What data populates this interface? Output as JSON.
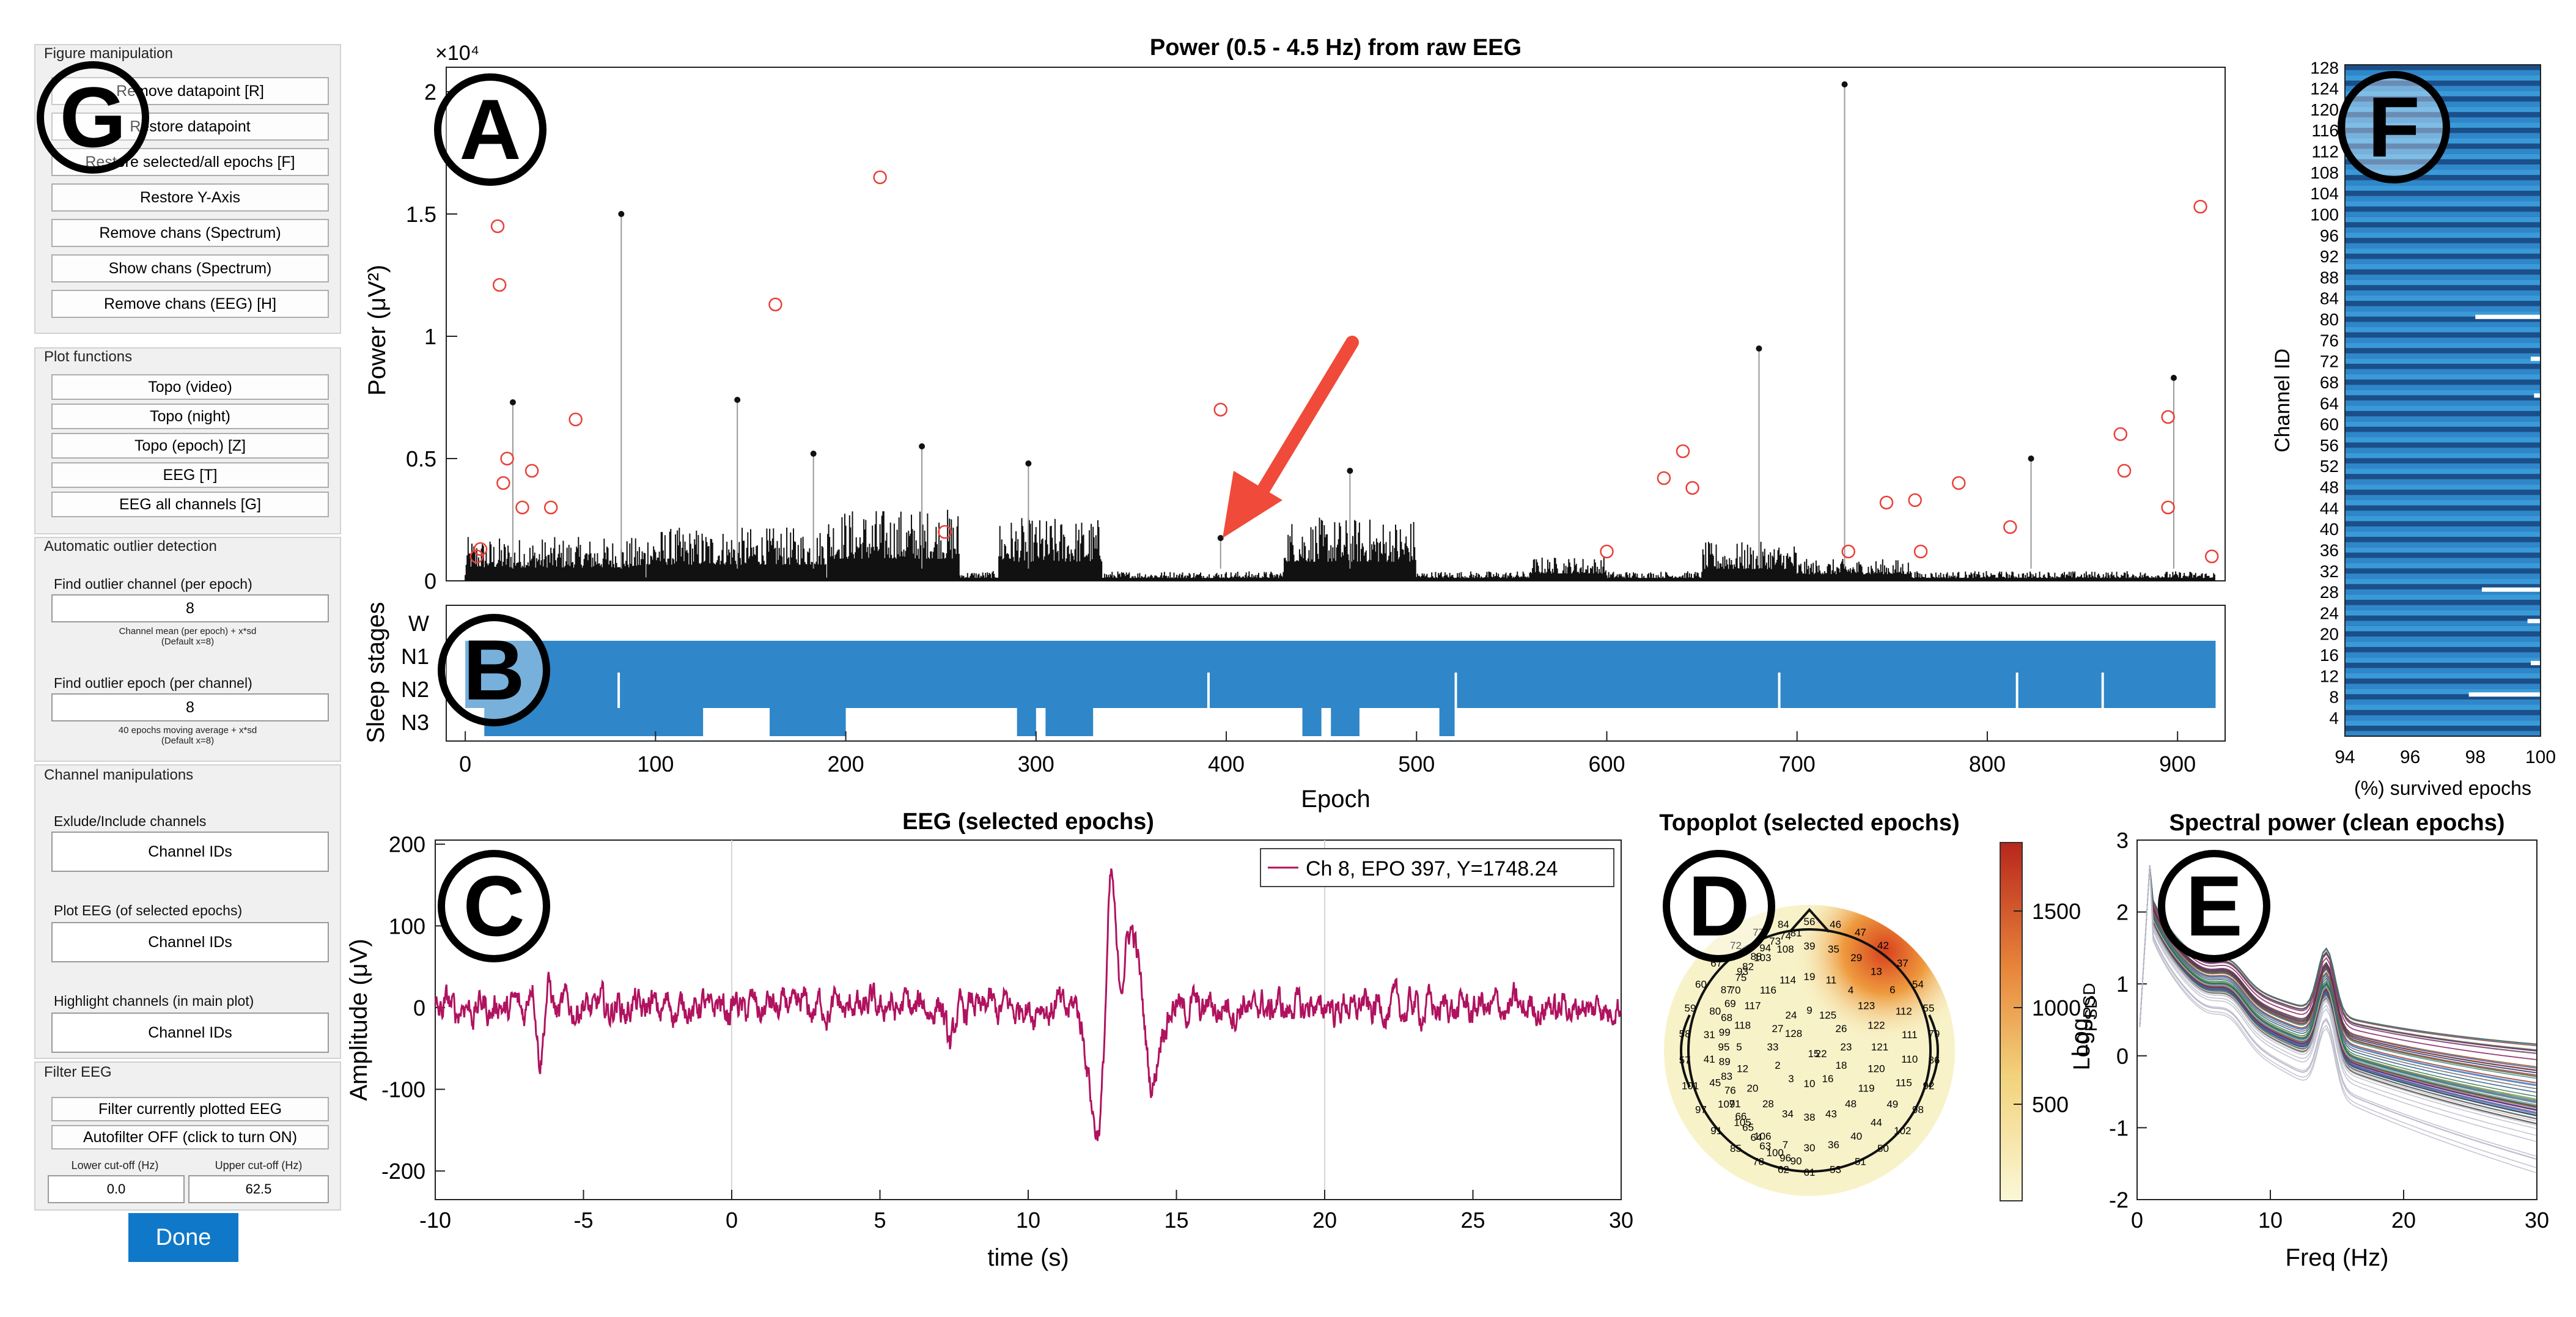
{
  "figure_panel": {
    "title": "Figure manipulation",
    "buttons": [
      "Remove datapoint [R]",
      "Restore datapoint",
      "Restore selected/all epochs [F]",
      "Restore Y-Axis",
      "Remove chans (Spectrum)",
      "Show chans (Spectrum)",
      "Remove chans (EEG) [H]"
    ]
  },
  "plot_panel": {
    "title": "Plot functions",
    "buttons": [
      "Topo (video)",
      "Topo (night)",
      "Topo (epoch) [Z]",
      "EEG [T]",
      "EEG all channels [G]"
    ]
  },
  "outlier_panel": {
    "title": "Automatic outlier detection",
    "channel_label": "Find outlier channel (per epoch)",
    "channel_value": "8",
    "channel_hint_1": "Channel mean (per epoch) + x*sd",
    "channel_hint_2": "(Default x=8)",
    "epoch_label": "Find outlier epoch (per channel)",
    "epoch_value": "8",
    "epoch_hint_1": "40 epochs moving average + x*sd",
    "epoch_hint_2": "(Default x=8)"
  },
  "channel_panel": {
    "title": "Channel manipulations",
    "exclude_label": "Exlude/Include channels",
    "exclude_placeholder": "Channel IDs",
    "plot_label": "Plot EEG (of selected epochs)",
    "plot_placeholder": "Channel IDs",
    "highlight_label": "Highlight channels (in main plot)",
    "highlight_placeholder": "Channel IDs"
  },
  "filter_panel": {
    "title": "Filter EEG",
    "filter_button": "Filter currently plotted EEG",
    "autofilter_button": "Autofilter OFF (click to turn ON)",
    "lower_label": "Lower cut-off (Hz)",
    "upper_label": "Upper cut-off (Hz)",
    "lower_value": "0.0",
    "upper_value": "62.5"
  },
  "done_label": "Done",
  "panel_letters": {
    "A": "A",
    "B": "B",
    "C": "C",
    "D": "D",
    "E": "E",
    "F": "F",
    "G": "G"
  },
  "colors": {
    "accent": "#0f78c8",
    "stage_fill": "#2f86c8",
    "arrow": "#f04a3a",
    "eeg_trace": "#b0125f",
    "outlier": "#e8413a"
  },
  "chart_data": [
    {
      "type": "line",
      "title": "Power (0.5 - 4.5 Hz) from raw EEG",
      "ylabel": "Power (μV²)",
      "exponent_label": "×10⁴",
      "xlim": [
        -10,
        925
      ],
      "ylim": [
        0,
        2.1
      ],
      "yticks": [
        "0",
        "0.5",
        "1",
        "1.5",
        "2"
      ],
      "peaks": [
        {
          "x": 82,
          "y": 1.5
        },
        {
          "x": 143,
          "y": 0.74
        },
        {
          "x": 25,
          "y": 0.73
        },
        {
          "x": 183,
          "y": 0.52
        },
        {
          "x": 240,
          "y": 0.55
        },
        {
          "x": 296,
          "y": 0.48
        },
        {
          "x": 465,
          "y": 0.45
        },
        {
          "x": 680,
          "y": 0.95
        },
        {
          "x": 725,
          "y": 2.03
        },
        {
          "x": 898,
          "y": 0.83
        },
        {
          "x": 823,
          "y": 0.5
        },
        {
          "x": 397,
          "y": 0.175
        }
      ],
      "outliers": [
        {
          "x": 17,
          "y": 1.45
        },
        {
          "x": 18,
          "y": 1.21
        },
        {
          "x": 218,
          "y": 1.65
        },
        {
          "x": 163,
          "y": 1.13
        },
        {
          "x": 397,
          "y": 0.7
        },
        {
          "x": 58,
          "y": 0.66
        },
        {
          "x": 22,
          "y": 0.5
        },
        {
          "x": 35,
          "y": 0.45
        },
        {
          "x": 640,
          "y": 0.53
        },
        {
          "x": 630,
          "y": 0.42
        },
        {
          "x": 645,
          "y": 0.38
        },
        {
          "x": 785,
          "y": 0.4
        },
        {
          "x": 870,
          "y": 0.6
        },
        {
          "x": 872,
          "y": 0.45
        },
        {
          "x": 895,
          "y": 0.67
        },
        {
          "x": 895,
          "y": 0.3
        },
        {
          "x": 912,
          "y": 1.53
        },
        {
          "x": 6,
          "y": 0.1
        },
        {
          "x": 8,
          "y": 0.13
        },
        {
          "x": 20,
          "y": 0.4
        },
        {
          "x": 30,
          "y": 0.3
        },
        {
          "x": 45,
          "y": 0.3
        },
        {
          "x": 252,
          "y": 0.2
        },
        {
          "x": 600,
          "y": 0.12
        },
        {
          "x": 747,
          "y": 0.32
        },
        {
          "x": 762,
          "y": 0.33
        },
        {
          "x": 765,
          "y": 0.12
        },
        {
          "x": 812,
          "y": 0.22
        },
        {
          "x": 918,
          "y": 0.1
        },
        {
          "x": 727,
          "y": 0.12
        }
      ]
    },
    {
      "type": "area",
      "ylabel": "Sleep stages",
      "stage_labels": [
        "W",
        "N1",
        "N2",
        "N3"
      ],
      "xlabel": "Epoch",
      "xticks": [
        "0",
        "100",
        "200",
        "300",
        "400",
        "500",
        "600",
        "700",
        "800",
        "900"
      ],
      "xlim": [
        -10,
        925
      ],
      "n3_segments": [
        [
          10,
          125
        ],
        [
          160,
          200
        ],
        [
          290,
          300
        ],
        [
          305,
          330
        ],
        [
          440,
          450
        ],
        [
          455,
          470
        ],
        [
          512,
          520
        ]
      ]
    },
    {
      "type": "line",
      "title": "EEG (selected epochs)",
      "xlabel": "time (s)",
      "ylabel": "Amplitude (μV)",
      "legend": "Ch 8, EPO 397, Y=1748.24",
      "xlim": [
        -10,
        30
      ],
      "ylim": [
        -235,
        205
      ],
      "xticks": [
        "-10",
        "-5",
        "0",
        "5",
        "10",
        "15",
        "20",
        "25",
        "30"
      ],
      "yticks": [
        "200",
        "100",
        "0",
        "-100",
        "-200"
      ]
    },
    {
      "type": "heatmap",
      "title": "Topoplot (selected epochs)",
      "colorbar_label": "Log",
      "colorbar_sub": "PSD",
      "colorbar_ticks": [
        "1500",
        "1000",
        "500"
      ],
      "channel_labels": [
        "128",
        "22",
        "15",
        "9",
        "125",
        "26",
        "23",
        "18",
        "16",
        "10",
        "3",
        "2",
        "33",
        "27",
        "24",
        "19",
        "11",
        "4",
        "123",
        "122",
        "121",
        "120",
        "119",
        "48",
        "43",
        "38",
        "34",
        "28",
        "20",
        "12",
        "5",
        "118",
        "117",
        "116",
        "114",
        "39",
        "35",
        "29",
        "13",
        "6",
        "112",
        "111",
        "110",
        "115",
        "49",
        "44",
        "40",
        "36",
        "30",
        "7",
        "106",
        "105",
        "109",
        "45",
        "41",
        "31",
        "80",
        "87",
        "93",
        "103",
        "108",
        "56",
        "46",
        "47",
        "42",
        "37",
        "54",
        "55",
        "79",
        "86",
        "92",
        "98",
        "102",
        "50",
        "51",
        "53",
        "61",
        "62",
        "78",
        "85",
        "91",
        "97",
        "101",
        "57",
        "58",
        "59",
        "60",
        "67",
        "72",
        "77",
        "84",
        "90",
        "96",
        "100",
        "63",
        "64",
        "65",
        "66",
        "71",
        "76",
        "83",
        "89",
        "95",
        "99",
        "68",
        "69",
        "70",
        "75",
        "82",
        "88",
        "94",
        "73",
        "74",
        "81"
      ]
    },
    {
      "type": "line",
      "title": "Spectral power (clean epochs)",
      "xlabel": "Freq (Hz)",
      "ylabel": "Log",
      "ylabel_sub": "PSD",
      "xlim": [
        0,
        30
      ],
      "ylim": [
        -2,
        3
      ],
      "xticks": [
        "0",
        "10",
        "20",
        "30"
      ],
      "yticks": [
        "3",
        "2",
        "1",
        "0",
        "-1",
        "-2"
      ]
    },
    {
      "type": "heatmap",
      "ylabel": "Channel ID",
      "xlabel": "(%) survived epochs",
      "xticks": [
        "94",
        "96",
        "98",
        "100"
      ],
      "yticks": [
        "128",
        "124",
        "120",
        "116",
        "112",
        "108",
        "104",
        "100",
        "96",
        "92",
        "88",
        "84",
        "80",
        "76",
        "72",
        "68",
        "64",
        "60",
        "56",
        "52",
        "48",
        "44",
        "40",
        "36",
        "32",
        "28",
        "24",
        "20",
        "16",
        "12",
        "8",
        "4"
      ]
    }
  ]
}
